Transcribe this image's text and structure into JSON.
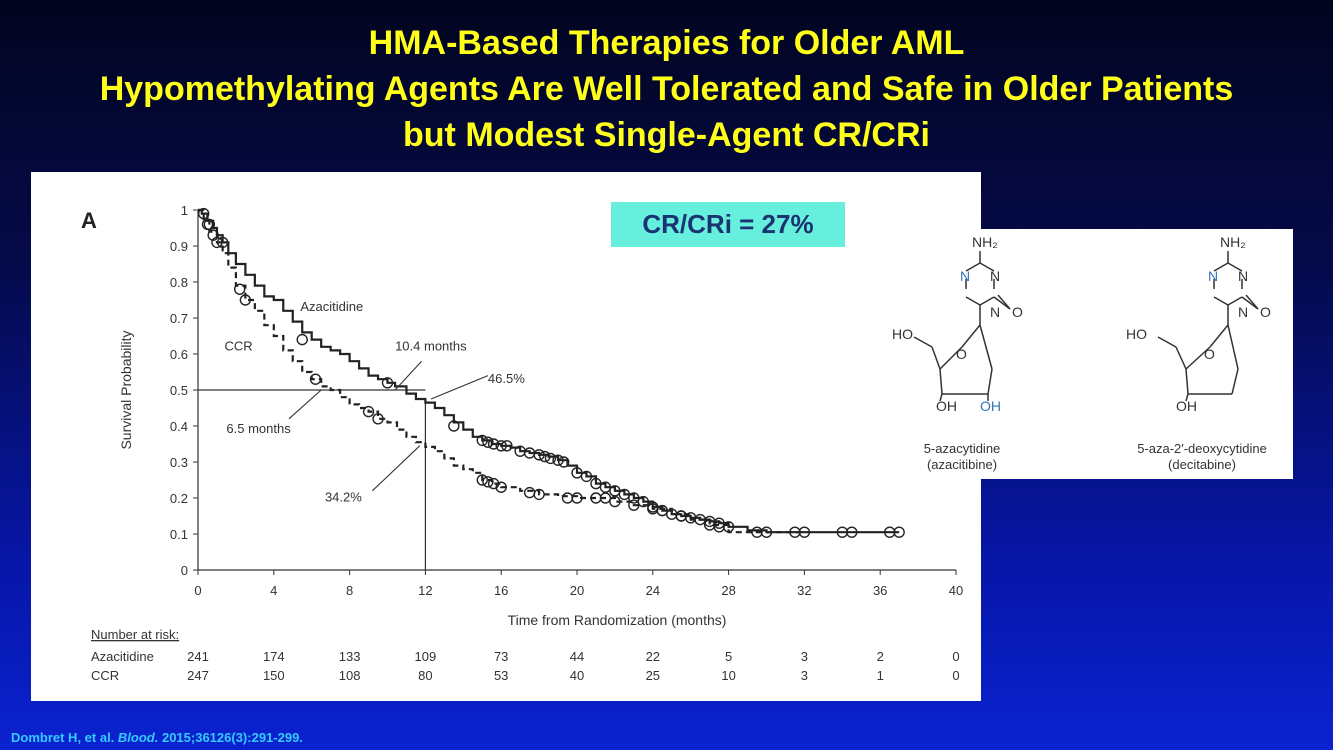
{
  "title_lines": [
    "HMA-Based Therapies for Older AML",
    "Hypomethylating Agents Are Well Tolerated and Safe in Older Patients",
    "but Modest Single-Agent CR/CRi"
  ],
  "cr_badge": "CR/CRi = 27%",
  "citation": {
    "authors": "Dombret H, et al. ",
    "journal": "Blood.",
    "details": " 2015;36126(3):291-299."
  },
  "structures": {
    "azacitidine": {
      "name": "5-azacytidine",
      "alt": "(azacitibine)"
    },
    "decitabine": {
      "name": "5-aza-2′-deoxycytidine",
      "alt": "(decitabine)"
    },
    "labels": {
      "nh2": "NH₂",
      "n": "N",
      "o": "O",
      "ho": "HO",
      "oh": "OH"
    },
    "colors": {
      "n_highlight": "#3377bb",
      "oh_highlight": "#3377bb",
      "bond": "#333333"
    }
  },
  "colors": {
    "title": "#ffff1a",
    "badge_bg": "#66efdc",
    "badge_text": "#1b3370",
    "citation": "#33ccff"
  },
  "chart_data": {
    "type": "line",
    "panel_label": "A",
    "xlabel": "Time from Randomization (months)",
    "ylabel": "Survival Probability",
    "xlim": [
      0,
      40
    ],
    "ylim": [
      0,
      1
    ],
    "xticks": [
      0,
      4,
      8,
      12,
      16,
      20,
      24,
      28,
      32,
      36,
      40
    ],
    "yticks": [
      0,
      0.1,
      0.2,
      0.3,
      0.4,
      0.5,
      0.6,
      0.7,
      0.8,
      0.9,
      1
    ],
    "series": [
      {
        "name": "Azacitidine",
        "style": "solid",
        "x": [
          0,
          0.2,
          0.5,
          0.8,
          1.0,
          1.3,
          1.6,
          2.0,
          2.5,
          3.0,
          3.5,
          4.0,
          4.5,
          5.0,
          5.5,
          6.0,
          6.5,
          7.0,
          7.5,
          8.0,
          8.5,
          9.0,
          9.5,
          10.0,
          10.4,
          11.0,
          11.5,
          12.0,
          12.5,
          13.0,
          13.5,
          14.0,
          14.5,
          15.0,
          15.5,
          16.0,
          16.5,
          17.0,
          17.5,
          18.0,
          18.5,
          19.0,
          19.5,
          20.0,
          20.5,
          21.0,
          21.5,
          22.0,
          22.5,
          23.0,
          23.5,
          24.0,
          24.5,
          25.0,
          25.5,
          26.0,
          26.5,
          27.0,
          27.5,
          28.0,
          29.0,
          30.0,
          32.0,
          34.0,
          36.0,
          37.0
        ],
        "y": [
          1.0,
          0.99,
          0.97,
          0.95,
          0.93,
          0.91,
          0.88,
          0.85,
          0.82,
          0.79,
          0.76,
          0.75,
          0.72,
          0.69,
          0.66,
          0.64,
          0.62,
          0.61,
          0.6,
          0.58,
          0.56,
          0.54,
          0.53,
          0.52,
          0.51,
          0.49,
          0.475,
          0.465,
          0.45,
          0.43,
          0.41,
          0.39,
          0.37,
          0.36,
          0.35,
          0.345,
          0.34,
          0.33,
          0.325,
          0.32,
          0.315,
          0.305,
          0.29,
          0.27,
          0.26,
          0.24,
          0.23,
          0.22,
          0.21,
          0.2,
          0.19,
          0.175,
          0.165,
          0.155,
          0.15,
          0.145,
          0.14,
          0.135,
          0.13,
          0.12,
          0.11,
          0.105,
          0.105,
          0.105,
          0.105,
          0.105
        ],
        "censor_x": [
          0.3,
          0.6,
          1.3,
          5.5,
          10.0,
          13.5,
          15.0,
          15.3,
          15.6,
          16.0,
          16.3,
          17.0,
          17.5,
          18.0,
          18.3,
          18.6,
          19.0,
          19.3,
          20.0,
          20.5,
          21.0,
          21.5,
          22.0,
          22.5,
          23.0,
          23.5,
          24.0,
          24.5,
          25.0,
          25.5,
          26.0,
          26.5,
          27.0,
          27.5,
          28.0,
          29.5,
          30.0,
          31.5,
          32.0,
          34.0,
          34.5,
          36.5,
          37.0
        ],
        "censor_y": [
          0.99,
          0.96,
          0.91,
          0.64,
          0.52,
          0.4,
          0.36,
          0.355,
          0.35,
          0.345,
          0.345,
          0.33,
          0.325,
          0.32,
          0.315,
          0.31,
          0.305,
          0.3,
          0.27,
          0.26,
          0.24,
          0.23,
          0.22,
          0.21,
          0.2,
          0.19,
          0.175,
          0.165,
          0.155,
          0.15,
          0.145,
          0.14,
          0.135,
          0.13,
          0.12,
          0.105,
          0.105,
          0.105,
          0.105,
          0.105,
          0.105,
          0.105,
          0.105
        ]
      },
      {
        "name": "CCR",
        "style": "dashed",
        "x": [
          0,
          0.3,
          0.6,
          1.0,
          1.3,
          1.6,
          2.0,
          2.5,
          3.0,
          3.5,
          4.0,
          4.5,
          5.0,
          5.5,
          6.0,
          6.5,
          7.0,
          7.5,
          8.0,
          8.5,
          9.0,
          9.5,
          10.0,
          10.5,
          11.0,
          11.5,
          12.0,
          12.5,
          13.0,
          13.5,
          14.0,
          14.5,
          15.0,
          15.5,
          16.0,
          17.0,
          18.0,
          19.0,
          20.0,
          21.0,
          22.0,
          23.0,
          24.0,
          25.0,
          26.0,
          27.0,
          28.0,
          29.0,
          30.0,
          32.0
        ],
        "y": [
          1.0,
          0.97,
          0.94,
          0.91,
          0.88,
          0.84,
          0.79,
          0.75,
          0.72,
          0.68,
          0.65,
          0.61,
          0.58,
          0.55,
          0.53,
          0.51,
          0.5,
          0.48,
          0.46,
          0.45,
          0.44,
          0.42,
          0.41,
          0.39,
          0.37,
          0.355,
          0.342,
          0.33,
          0.31,
          0.29,
          0.28,
          0.27,
          0.25,
          0.24,
          0.23,
          0.22,
          0.21,
          0.205,
          0.2,
          0.2,
          0.19,
          0.18,
          0.17,
          0.155,
          0.14,
          0.125,
          0.105,
          0.105,
          0.105,
          0.105
        ],
        "censor_x": [
          0.5,
          0.8,
          1.0,
          2.2,
          2.5,
          6.2,
          9.0,
          9.5,
          15.0,
          15.3,
          15.6,
          16.0,
          17.5,
          18.0,
          19.5,
          20.0,
          21.0,
          21.5,
          22.0,
          23.0,
          24.0,
          24.5,
          25.5,
          27.0,
          27.5
        ],
        "censor_y": [
          0.96,
          0.93,
          0.91,
          0.78,
          0.75,
          0.53,
          0.44,
          0.42,
          0.25,
          0.245,
          0.24,
          0.23,
          0.215,
          0.21,
          0.2,
          0.2,
          0.2,
          0.2,
          0.19,
          0.18,
          0.17,
          0.165,
          0.15,
          0.125,
          0.12
        ]
      }
    ],
    "reference_lines": {
      "y": 0.5,
      "x": 12
    },
    "annotations": [
      {
        "text": "Azacitidine",
        "x": 5.4,
        "y": 0.72
      },
      {
        "text": "CCR",
        "x": 1.4,
        "y": 0.61
      },
      {
        "text": "10.4 months",
        "x": 10.4,
        "y": 0.61
      },
      {
        "text": "46.5%",
        "x": 15.3,
        "y": 0.52
      },
      {
        "text": "6.5 months",
        "x": 1.5,
        "y": 0.38
      },
      {
        "text": "34.2%",
        "x": 6.7,
        "y": 0.19
      }
    ],
    "risk_table": {
      "header": "Number at risk:",
      "times": [
        0,
        4,
        8,
        12,
        16,
        20,
        24,
        28,
        32,
        36,
        40
      ],
      "rows": [
        {
          "label": "Azacitidine",
          "values": [
            "241",
            "174",
            "133",
            "109",
            "73",
            "44",
            "22",
            "5",
            "3",
            "2",
            "0"
          ]
        },
        {
          "label": "CCR",
          "values": [
            "247",
            "150",
            "108",
            "80",
            "53",
            "40",
            "25",
            "10",
            "3",
            "1",
            "0"
          ]
        }
      ]
    }
  }
}
